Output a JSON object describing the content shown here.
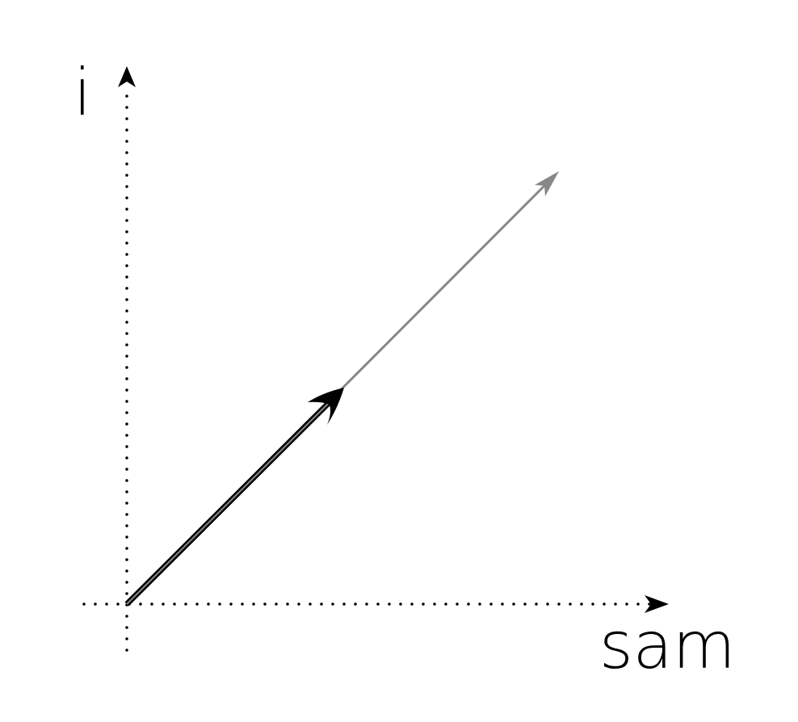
{
  "diagram": {
    "axes": {
      "x_label": "sam",
      "y_label": "i"
    },
    "colors": {
      "background": "#ffffff",
      "axis": "#000000",
      "short_vector": "#000000",
      "long_vector": "#888888"
    }
  }
}
